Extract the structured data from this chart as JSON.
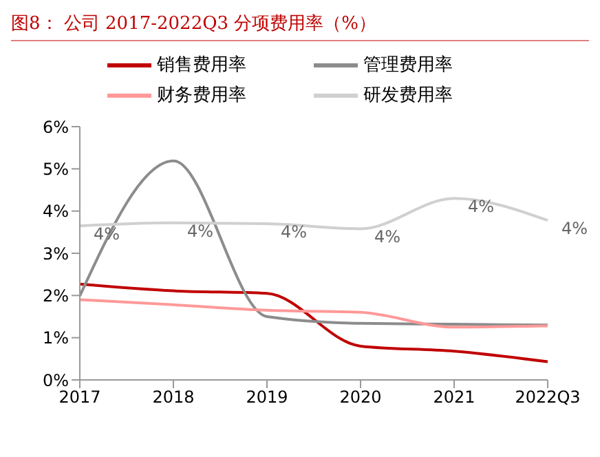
{
  "chart_data": {
    "type": "line",
    "title": "图8： 公司 2017-2022Q3 分项费用率（%）",
    "categories": [
      "2017",
      "2018",
      "2019",
      "2020",
      "2021",
      "2022Q3"
    ],
    "series": [
      {
        "name": "销售费用率",
        "color": "#c00000",
        "values": [
          2.27,
          2.11,
          2.05,
          0.8,
          0.68,
          0.43
        ]
      },
      {
        "name": "管理费用率",
        "color": "#8c8c8c",
        "values": [
          1.99,
          5.19,
          1.5,
          1.34,
          1.32,
          1.3
        ]
      },
      {
        "name": "财务费用率",
        "color": "#ff9999",
        "values": [
          1.9,
          1.78,
          1.65,
          1.6,
          1.25,
          1.28
        ]
      },
      {
        "name": "研发费用率",
        "color": "#d0d0d0",
        "values": [
          3.65,
          3.72,
          3.7,
          3.58,
          4.3,
          3.78
        ],
        "value_labels": [
          "4%",
          "4%",
          "4%",
          "4%",
          "4%",
          "4%"
        ]
      }
    ],
    "ylim": [
      0,
      6
    ],
    "yticks": [
      {
        "value": 0,
        "label": "0%"
      },
      {
        "value": 1,
        "label": "1%"
      },
      {
        "value": 2,
        "label": "2%"
      },
      {
        "value": 3,
        "label": "3%"
      },
      {
        "value": 4,
        "label": "4%"
      },
      {
        "value": 5,
        "label": "5%"
      },
      {
        "value": 6,
        "label": "6%"
      }
    ],
    "grid": false,
    "legend": "top",
    "marker": "none",
    "line_style": "solid"
  }
}
